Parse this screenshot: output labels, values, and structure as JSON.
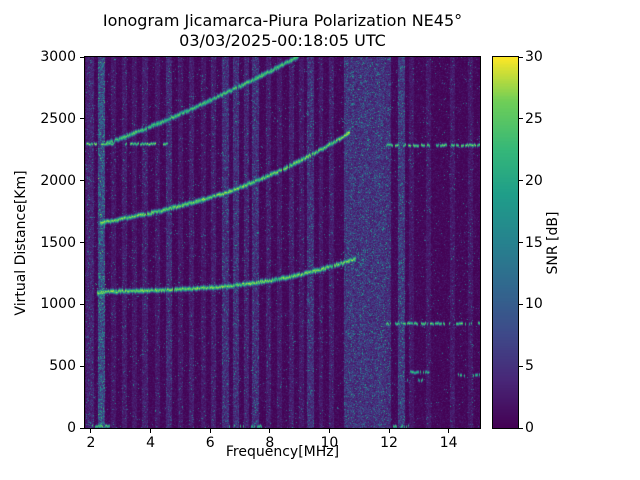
{
  "chart_data": {
    "type": "heatmap",
    "title": "Ionogram Jicamarca-Piura Polarization NE45°",
    "subtitle": "03/03/2025-00:18:05 UTC",
    "xlabel": "Frequency[MHz]",
    "ylabel": "Virtual Distance[Km]",
    "xlim": [
      1.8,
      15.05
    ],
    "ylim": [
      0,
      3000
    ],
    "xticks": [
      2,
      4,
      6,
      8,
      10,
      12,
      14
    ],
    "yticks": [
      0,
      500,
      1000,
      1500,
      2000,
      2500,
      3000
    ],
    "grid": false,
    "colorbar": {
      "label": "SNR [dB]",
      "min": 0,
      "max": 30,
      "ticks": [
        0,
        5,
        10,
        15,
        20,
        25,
        30
      ],
      "colormap": "viridis",
      "colors": {
        "low": "#440154",
        "mid": "#26828e",
        "high": "#fde725"
      }
    },
    "echo_traces": [
      {
        "name": "first-hop",
        "snr_db": 29,
        "points": [
          [
            2.2,
            1095
          ],
          [
            2.6,
            1105
          ],
          [
            3.5,
            1112
          ],
          [
            4.5,
            1120
          ],
          [
            5.5,
            1132
          ],
          [
            6.5,
            1150
          ],
          [
            7.5,
            1178
          ],
          [
            8.5,
            1218
          ],
          [
            9.5,
            1272
          ],
          [
            10.3,
            1328
          ],
          [
            10.85,
            1370
          ]
        ]
      },
      {
        "name": "second-hop",
        "snr_db": 29,
        "points": [
          [
            2.3,
            1660
          ],
          [
            3.0,
            1695
          ],
          [
            4.0,
            1742
          ],
          [
            5.0,
            1800
          ],
          [
            6.0,
            1868
          ],
          [
            7.0,
            1950
          ],
          [
            8.0,
            2050
          ],
          [
            9.0,
            2165
          ],
          [
            10.0,
            2295
          ],
          [
            10.65,
            2395
          ]
        ]
      },
      {
        "name": "third-hop",
        "snr_db": 27,
        "points": [
          [
            2.5,
            2305
          ],
          [
            3.0,
            2348
          ],
          [
            4.0,
            2442
          ],
          [
            5.0,
            2545
          ],
          [
            6.0,
            2655
          ],
          [
            7.0,
            2772
          ],
          [
            8.0,
            2888
          ],
          [
            8.95,
            3010
          ]
        ]
      }
    ],
    "rfi_stripes": [
      {
        "f": 1.95,
        "w": 0.1,
        "amp": 5
      },
      {
        "f": 2.33,
        "w": 0.09,
        "amp": 13
      },
      {
        "f": 2.75,
        "w": 0.05,
        "amp": 3
      },
      {
        "f": 3.1,
        "w": 0.05,
        "amp": 4
      },
      {
        "f": 3.45,
        "w": 0.05,
        "amp": 3
      },
      {
        "f": 3.8,
        "w": 0.06,
        "amp": 4
      },
      {
        "f": 4.2,
        "w": 0.05,
        "amp": 3
      },
      {
        "f": 4.6,
        "w": 0.07,
        "amp": 6
      },
      {
        "f": 5.0,
        "w": 0.05,
        "amp": 3
      },
      {
        "f": 5.35,
        "w": 0.05,
        "amp": 4
      },
      {
        "f": 5.75,
        "w": 0.05,
        "amp": 3
      },
      {
        "f": 6.1,
        "w": 0.05,
        "amp": 4
      },
      {
        "f": 6.5,
        "w": 0.08,
        "amp": 7
      },
      {
        "f": 6.85,
        "w": 0.08,
        "amp": 7
      },
      {
        "f": 7.2,
        "w": 0.06,
        "amp": 5
      },
      {
        "f": 7.5,
        "w": 0.09,
        "amp": 7
      },
      {
        "f": 7.95,
        "w": 0.05,
        "amp": 4
      },
      {
        "f": 8.3,
        "w": 0.05,
        "amp": 3
      },
      {
        "f": 8.7,
        "w": 0.05,
        "amp": 4
      },
      {
        "f": 9.05,
        "w": 0.05,
        "amp": 3
      },
      {
        "f": 9.35,
        "w": 0.08,
        "amp": 7
      },
      {
        "f": 9.7,
        "w": 0.05,
        "amp": 3
      },
      {
        "f": 10.05,
        "w": 0.05,
        "amp": 4
      },
      {
        "f": 10.65,
        "w": 0.13,
        "amp": 8
      },
      {
        "f": 10.9,
        "w": 0.13,
        "amp": 7
      },
      {
        "f": 11.15,
        "w": 0.13,
        "amp": 8
      },
      {
        "f": 11.4,
        "w": 0.13,
        "amp": 7
      },
      {
        "f": 11.65,
        "w": 0.13,
        "amp": 8
      },
      {
        "f": 11.9,
        "w": 0.1,
        "amp": 7
      },
      {
        "f": 12.4,
        "w": 0.09,
        "amp": 9
      },
      {
        "f": 12.75,
        "w": 0.05,
        "amp": 3
      },
      {
        "f": 13.3,
        "w": 0.05,
        "amp": 3
      },
      {
        "f": 14.1,
        "w": 0.05,
        "amp": 3
      },
      {
        "f": 14.7,
        "w": 0.05,
        "amp": 3
      }
    ],
    "interference_lines": [
      {
        "km": 2300,
        "f1": 1.85,
        "f2": 4.55,
        "snr_db": 29,
        "density": 0.75
      },
      {
        "km": 2290,
        "f1": 11.9,
        "f2": 15.05,
        "snr_db": 29,
        "density": 0.8
      },
      {
        "km": 848,
        "f1": 11.9,
        "f2": 15.05,
        "snr_db": 28,
        "density": 0.65
      },
      {
        "km": 455,
        "f1": 12.35,
        "f2": 13.35,
        "snr_db": 26,
        "density": 0.55
      },
      {
        "km": 430,
        "f1": 14.3,
        "f2": 15.0,
        "snr_db": 26,
        "density": 0.5
      },
      {
        "km": 390,
        "f1": 12.5,
        "f2": 13.1,
        "snr_db": 25,
        "density": 0.45
      },
      {
        "km": 18,
        "f1": 2.05,
        "f2": 2.6,
        "snr_db": 29,
        "density": 0.85
      },
      {
        "km": 18,
        "f1": 6.55,
        "f2": 7.1,
        "snr_db": 27,
        "density": 0.6
      },
      {
        "km": 18,
        "f1": 7.35,
        "f2": 7.7,
        "snr_db": 26,
        "density": 0.55
      },
      {
        "km": 18,
        "f1": 11.95,
        "f2": 12.25,
        "snr_db": 28,
        "density": 0.7
      },
      {
        "km": 18,
        "f1": 12.4,
        "f2": 12.65,
        "snr_db": 27,
        "density": 0.6
      }
    ],
    "diffuse_patches": [
      {
        "f1": 2.15,
        "f2": 2.5,
        "km1": 1040,
        "km2": 1175,
        "density": 0.1,
        "snr_db": 24
      },
      {
        "f1": 2.2,
        "f2": 2.5,
        "km1": 1615,
        "km2": 1725,
        "density": 0.08,
        "snr_db": 22
      },
      {
        "f1": 10.3,
        "f2": 11.35,
        "km1": 1280,
        "km2": 1430,
        "density": 0.05,
        "snr_db": 20
      },
      {
        "f1": 10.4,
        "f2": 11.0,
        "km1": 2380,
        "km2": 2520,
        "density": 0.04,
        "snr_db": 18
      }
    ]
  }
}
